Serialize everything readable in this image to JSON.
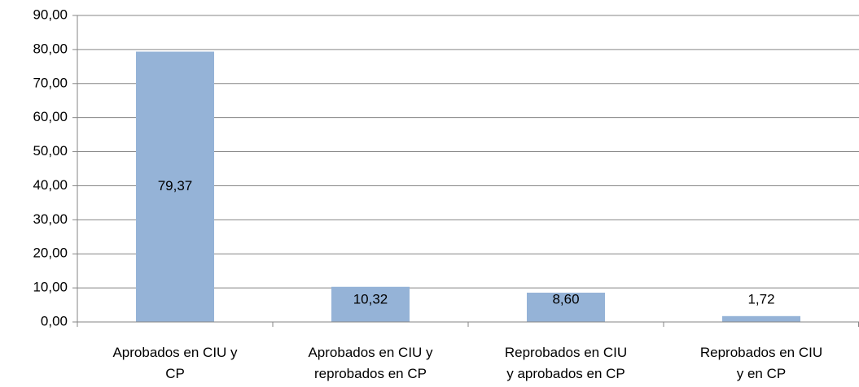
{
  "chart_data": {
    "type": "bar",
    "categories": [
      "Aprobados en CIU y CP",
      "Aprobados en CIU y reprobados en CP",
      "Reprobados en CIU y aprobados en CP",
      "Reprobados en CIU y en CP"
    ],
    "values": [
      79.37,
      10.32,
      8.6,
      1.72
    ],
    "value_labels": [
      "79,37",
      "10,32",
      "8,60",
      "1,72"
    ],
    "color": "#95b3d7",
    "ylim": [
      0,
      90
    ],
    "yticks": [
      {
        "value": 0,
        "label": "0,00"
      },
      {
        "value": 10,
        "label": "10,00"
      },
      {
        "value": 20,
        "label": "20,00"
      },
      {
        "value": 30,
        "label": "30,00"
      },
      {
        "value": 40,
        "label": "40,00"
      },
      {
        "value": 50,
        "label": "50,00"
      },
      {
        "value": 60,
        "label": "60,00"
      },
      {
        "value": 70,
        "label": "70,00"
      },
      {
        "value": 80,
        "label": "80,00"
      },
      {
        "value": 90,
        "label": "90,00"
      }
    ],
    "grid": true
  }
}
